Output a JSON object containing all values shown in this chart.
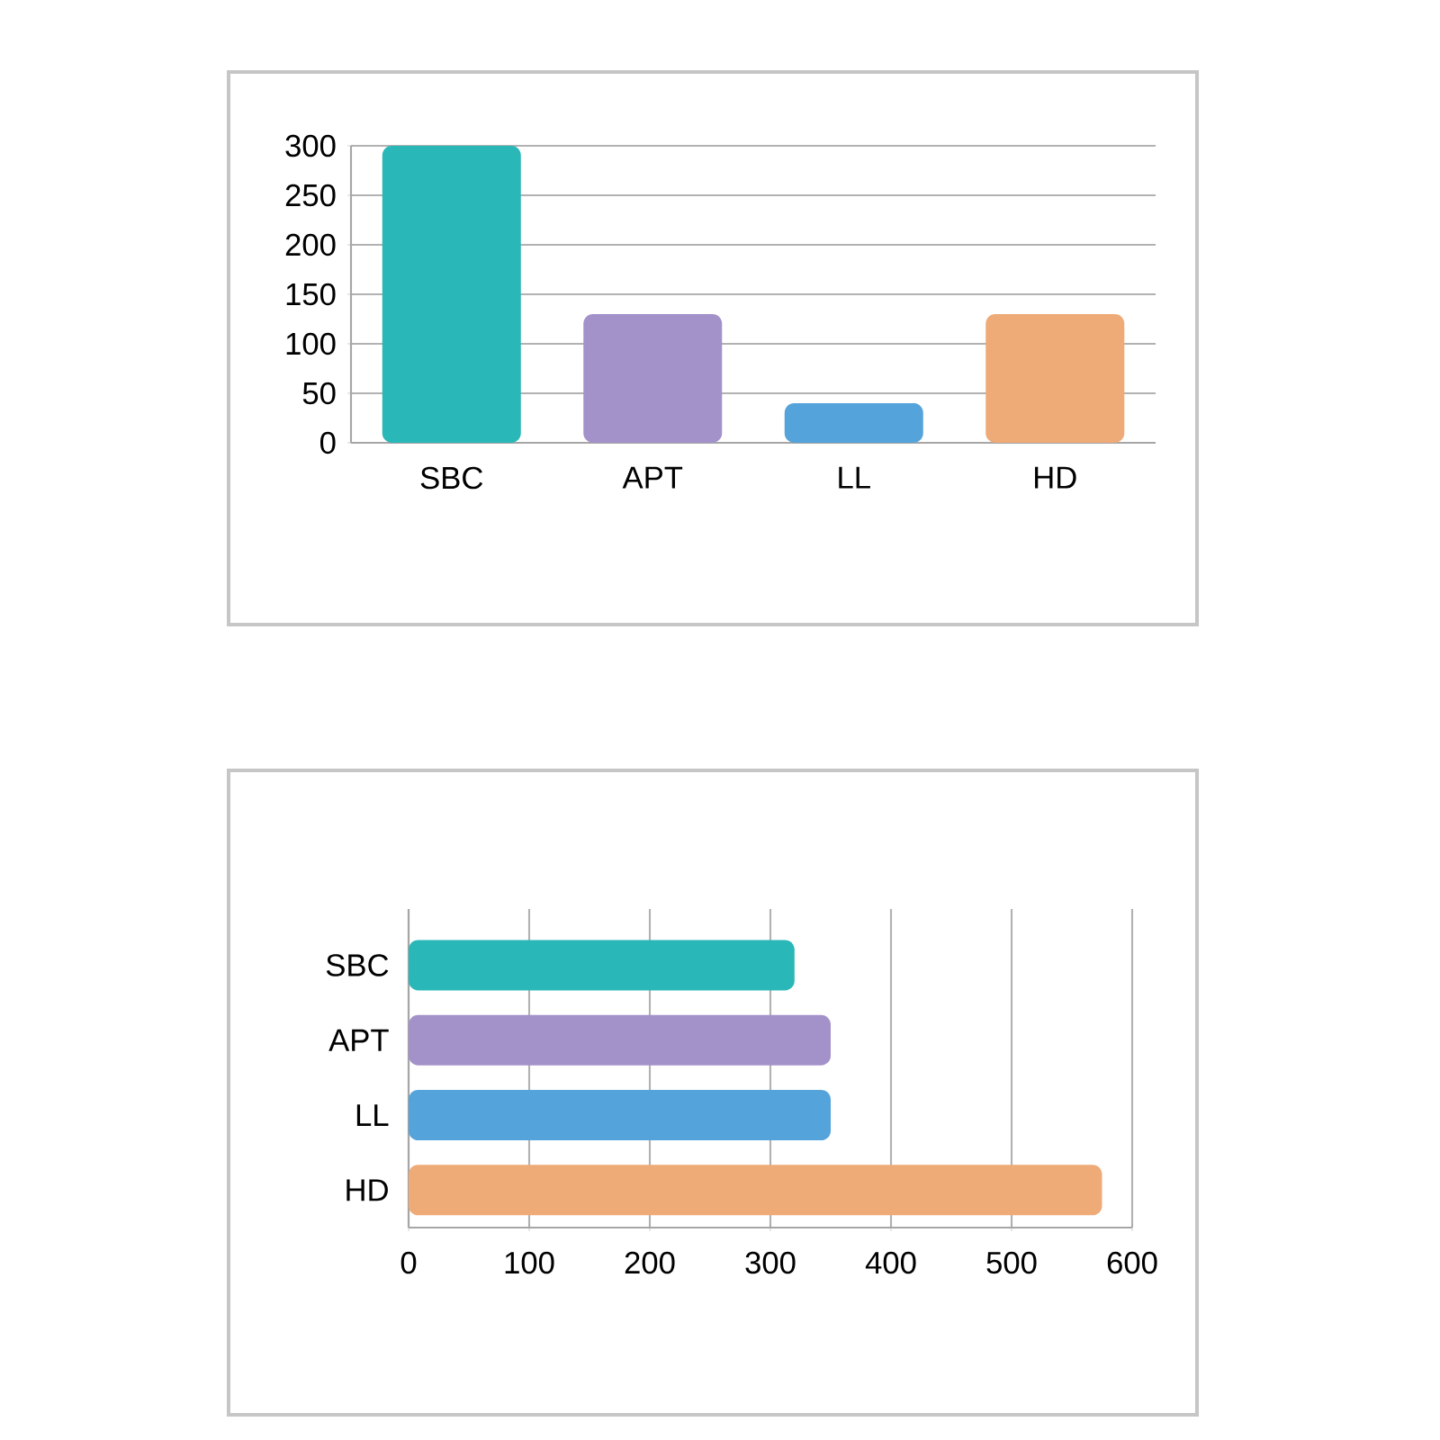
{
  "chart_data": [
    {
      "type": "bar",
      "categories": [
        "SBC",
        "APT",
        "LL",
        "HD"
      ],
      "values": [
        300,
        130,
        40,
        130
      ],
      "colors": [
        "#2ab7b8",
        "#a391c9",
        "#55a3db",
        "#eeaa77"
      ],
      "ylim": [
        0,
        300
      ],
      "yticks": [
        0,
        50,
        100,
        150,
        200,
        250,
        300
      ],
      "grid": "y"
    },
    {
      "type": "bar",
      "orientation": "horizontal",
      "categories": [
        "SBC",
        "APT",
        "LL",
        "HD"
      ],
      "values": [
        320,
        350,
        350,
        575
      ],
      "colors": [
        "#2ab7b8",
        "#a391c9",
        "#55a3db",
        "#eeaa77"
      ],
      "xlim": [
        0,
        600
      ],
      "xticks": [
        0,
        100,
        200,
        300,
        400,
        500,
        600
      ],
      "grid": "x"
    }
  ]
}
